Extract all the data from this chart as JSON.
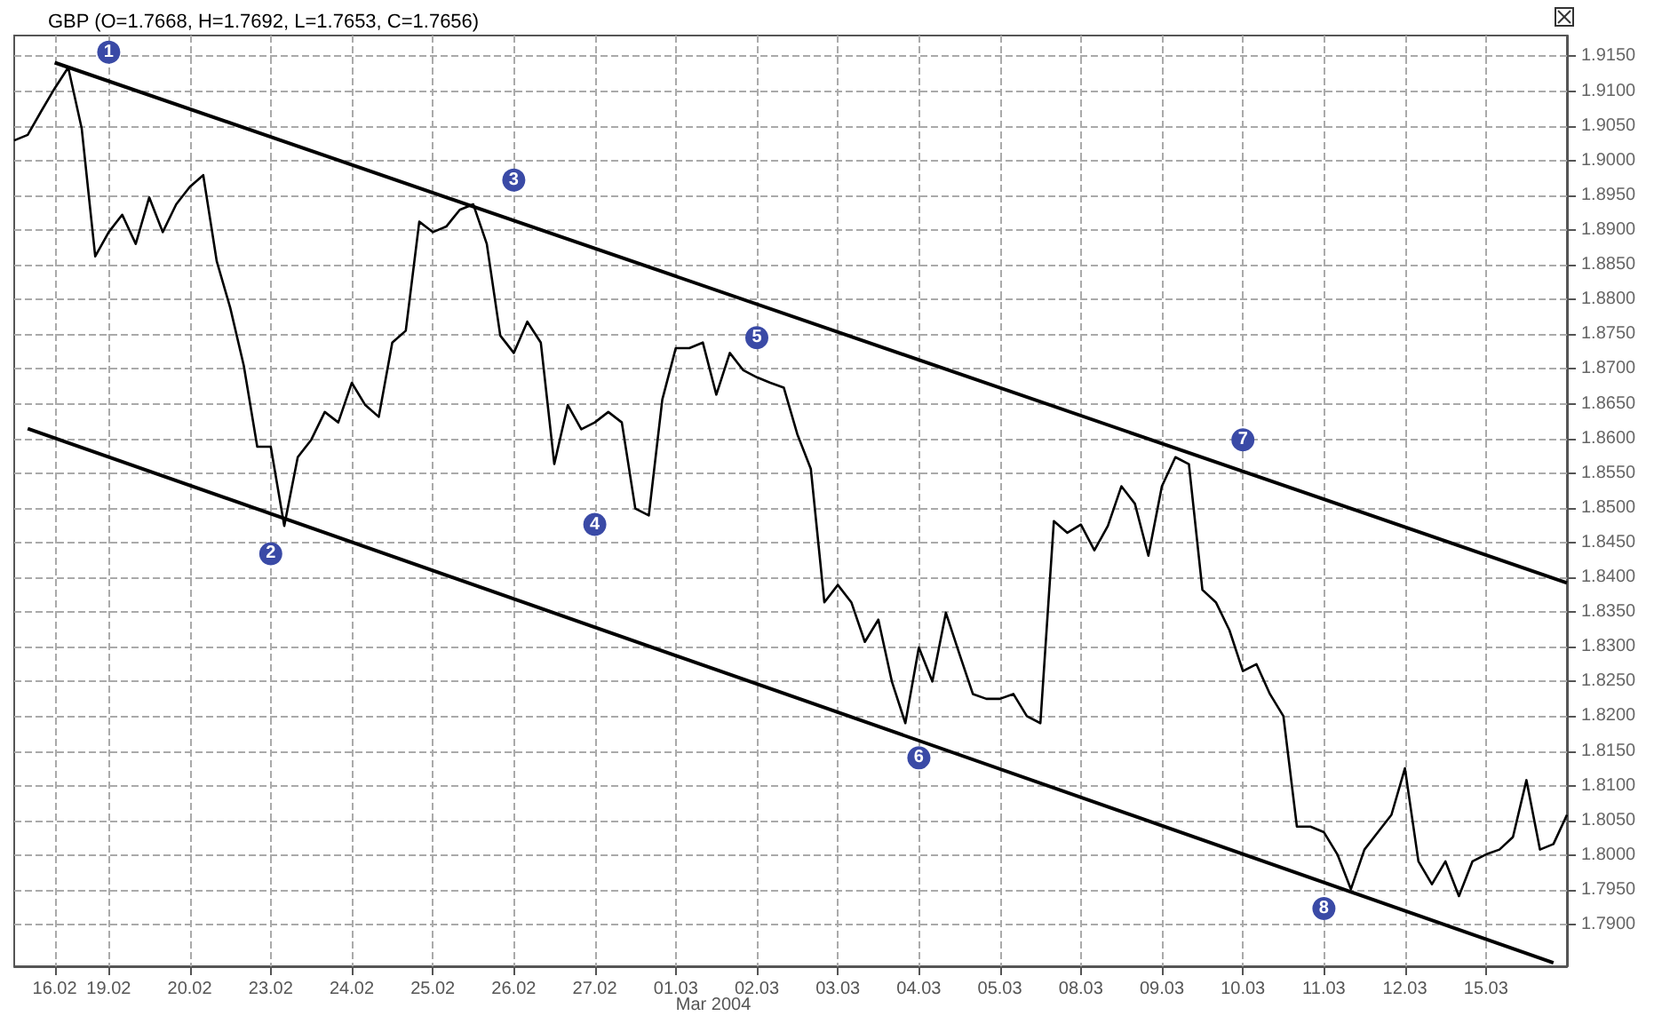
{
  "chart_data": {
    "type": "line",
    "title": "GBP (O=1.7668, H=1.7692, L=1.7653, C=1.7656)",
    "grid": true,
    "marker": "none",
    "ylim": [
      1.784,
      1.918
    ],
    "categories": [
      null,
      null,
      null,
      "16.02",
      null,
      null,
      null,
      "19.02",
      null,
      null,
      null,
      null,
      null,
      "20.02",
      null,
      null,
      null,
      null,
      null,
      "23.02",
      null,
      null,
      null,
      null,
      null,
      "24.02",
      null,
      null,
      null,
      null,
      null,
      "25.02",
      null,
      null,
      null,
      null,
      null,
      "26.02",
      null,
      null,
      null,
      null,
      null,
      "27.02",
      null,
      null,
      null,
      null,
      null,
      "01.03",
      null,
      null,
      null,
      null,
      null,
      "02.03",
      null,
      null,
      null,
      null,
      null,
      "03.03",
      null,
      null,
      null,
      null,
      null,
      "04.03",
      null,
      null,
      null,
      null,
      null,
      "05.03",
      null,
      null,
      null,
      null,
      null,
      "08.03",
      null,
      null,
      null,
      null,
      null,
      "09.03",
      null,
      null,
      null,
      null,
      null,
      "10.03",
      null,
      null,
      null,
      null,
      null,
      "11.03",
      null,
      null,
      null,
      null,
      null,
      "12.03",
      null,
      null,
      null,
      null,
      null,
      "15.03",
      null,
      null,
      null,
      null,
      null,
      null
    ],
    "yticks": [
      {
        "value": 1.79,
        "label": "1.7900"
      },
      {
        "value": 1.795,
        "label": "1.7950"
      },
      {
        "value": 1.8,
        "label": "1.8000"
      },
      {
        "value": 1.805,
        "label": "1.8050"
      },
      {
        "value": 1.81,
        "label": "1.8100"
      },
      {
        "value": 1.815,
        "label": "1.8150"
      },
      {
        "value": 1.82,
        "label": "1.8200"
      },
      {
        "value": 1.825,
        "label": "1.8250"
      },
      {
        "value": 1.83,
        "label": "1.8300"
      },
      {
        "value": 1.835,
        "label": "1.8350"
      },
      {
        "value": 1.84,
        "label": "1.8400"
      },
      {
        "value": 1.845,
        "label": "1.8450"
      },
      {
        "value": 1.85,
        "label": "1.8500"
      },
      {
        "value": 1.855,
        "label": "1.8550"
      },
      {
        "value": 1.86,
        "label": "1.8600"
      },
      {
        "value": 1.865,
        "label": "1.8650"
      },
      {
        "value": 1.87,
        "label": "1.8700"
      },
      {
        "value": 1.875,
        "label": "1.8750"
      },
      {
        "value": 1.88,
        "label": "1.8800"
      },
      {
        "value": 1.885,
        "label": "1.8850"
      },
      {
        "value": 1.89,
        "label": "1.8900"
      },
      {
        "value": 1.895,
        "label": "1.8950"
      },
      {
        "value": 1.9,
        "label": "1.9000"
      },
      {
        "value": 1.905,
        "label": "1.9050"
      },
      {
        "value": 1.91,
        "label": "1.9100"
      },
      {
        "value": 1.915,
        "label": "1.9150"
      }
    ],
    "annotations": [
      {
        "text": "1",
        "x": "19.02",
        "y": 1.9156
      },
      {
        "text": "2",
        "x": "23.02",
        "y": 1.8434
      },
      {
        "text": "3",
        "x": "26.02",
        "y": 1.8972
      },
      {
        "text": "4",
        "x": "27.02",
        "y": 1.8476
      },
      {
        "text": "5",
        "x": "02.03",
        "y": 1.8745
      },
      {
        "text": "6",
        "x": "04.03",
        "y": 1.814
      },
      {
        "text": "7",
        "x": "10.03",
        "y": 1.8598
      },
      {
        "text": "8",
        "x": "11.03",
        "y": 1.7923
      },
      "Mar 2004"
    ],
    "series": [
      {
        "color": "#000000",
        "values": [
          1.9029,
          1.9037,
          1.9071,
          1.9104,
          1.9134,
          1.9046,
          1.8862,
          1.8897,
          1.8922,
          1.888,
          1.8947,
          1.8897,
          1.8937,
          1.8962,
          1.8979,
          1.8855,
          1.8788,
          1.8705,
          1.8588,
          1.8588,
          1.8474,
          1.8573,
          1.8598,
          1.8638,
          1.8623,
          1.868,
          1.8648,
          1.8631,
          1.8738,
          1.8755,
          1.8912,
          1.8897,
          1.8905,
          1.8929,
          1.8937,
          1.888,
          1.8748,
          1.8723,
          1.8768,
          1.8738,
          1.8563,
          1.8648,
          1.8613,
          1.8623,
          1.8638,
          1.8623,
          1.8499,
          1.8489,
          1.8656,
          1.873,
          1.873,
          1.8738,
          1.8663,
          1.8723,
          1.8698,
          1.8688,
          1.868,
          1.8673,
          1.8606,
          1.8556,
          1.8364,
          1.8389,
          1.8364,
          1.8307,
          1.8339,
          1.825,
          1.819,
          1.8299,
          1.825,
          1.8349,
          1.829,
          1.8232,
          1.8225,
          1.8225,
          1.8232,
          1.82,
          1.819,
          1.8481,
          1.8464,
          1.8476,
          1.8439,
          1.8474,
          1.8531,
          1.8506,
          1.8431,
          1.8531,
          1.8573,
          1.8563,
          1.8382,
          1.8364,
          1.8324,
          1.8265,
          1.8275,
          1.8232,
          1.82,
          1.8041,
          1.8041,
          1.8033,
          1.8001,
          1.7951,
          1.8008,
          1.8033,
          1.8058,
          1.8125,
          1.7991,
          1.7958,
          1.7991,
          1.7941,
          1.7991,
          1.8001,
          1.8008,
          1.8026,
          1.8108,
          1.8008,
          1.8016,
          1.8058
        ]
      },
      {
        "type": "line",
        "color": "#000000",
        "values": [
          null,
          null,
          null,
          1.9141,
          null,
          null,
          null,
          null,
          null,
          null,
          null,
          null,
          null,
          null,
          null,
          null,
          null,
          null,
          null,
          null,
          null,
          null,
          null,
          null,
          null,
          null,
          null,
          null,
          null,
          null,
          null,
          null,
          null,
          null,
          null,
          null,
          null,
          null,
          null,
          null,
          null,
          null,
          null,
          null,
          null,
          null,
          null,
          null,
          null,
          null,
          null,
          null,
          null,
          null,
          null,
          null,
          null,
          null,
          null,
          null,
          null,
          null,
          null,
          null,
          null,
          null,
          null,
          null,
          null,
          null,
          null,
          null,
          null,
          null,
          null,
          null,
          null,
          null,
          null,
          null,
          null,
          null,
          null,
          null,
          null,
          null,
          null,
          null,
          null,
          null,
          null,
          null,
          null,
          null,
          null,
          null,
          null,
          null,
          null,
          null,
          null,
          null,
          null,
          null,
          null,
          null,
          null,
          null,
          null,
          null,
          null,
          null,
          null,
          null,
          null,
          1.8392
        ]
      },
      {
        "type": "line",
        "color": "#000000",
        "values": [
          null,
          1.8614,
          null,
          null,
          null,
          null,
          null,
          null,
          null,
          null,
          null,
          null,
          null,
          null,
          null,
          null,
          null,
          null,
          null,
          null,
          null,
          null,
          null,
          null,
          null,
          null,
          null,
          null,
          null,
          null,
          null,
          null,
          null,
          null,
          null,
          null,
          null,
          null,
          null,
          null,
          null,
          null,
          null,
          null,
          null,
          null,
          null,
          null,
          null,
          null,
          null,
          null,
          null,
          null,
          null,
          null,
          null,
          null,
          null,
          null,
          null,
          null,
          null,
          null,
          null,
          null,
          null,
          null,
          null,
          null,
          null,
          null,
          null,
          null,
          null,
          null,
          null,
          null,
          null,
          null,
          null,
          null,
          null,
          null,
          null,
          null,
          null,
          null,
          null,
          null,
          null,
          null,
          null,
          null,
          null,
          null,
          null,
          null,
          null,
          null,
          null,
          null,
          null,
          null,
          null,
          null,
          null,
          null,
          null,
          null,
          null,
          null,
          null,
          null,
          1.7845,
          null
        ]
      }
    ]
  }
}
